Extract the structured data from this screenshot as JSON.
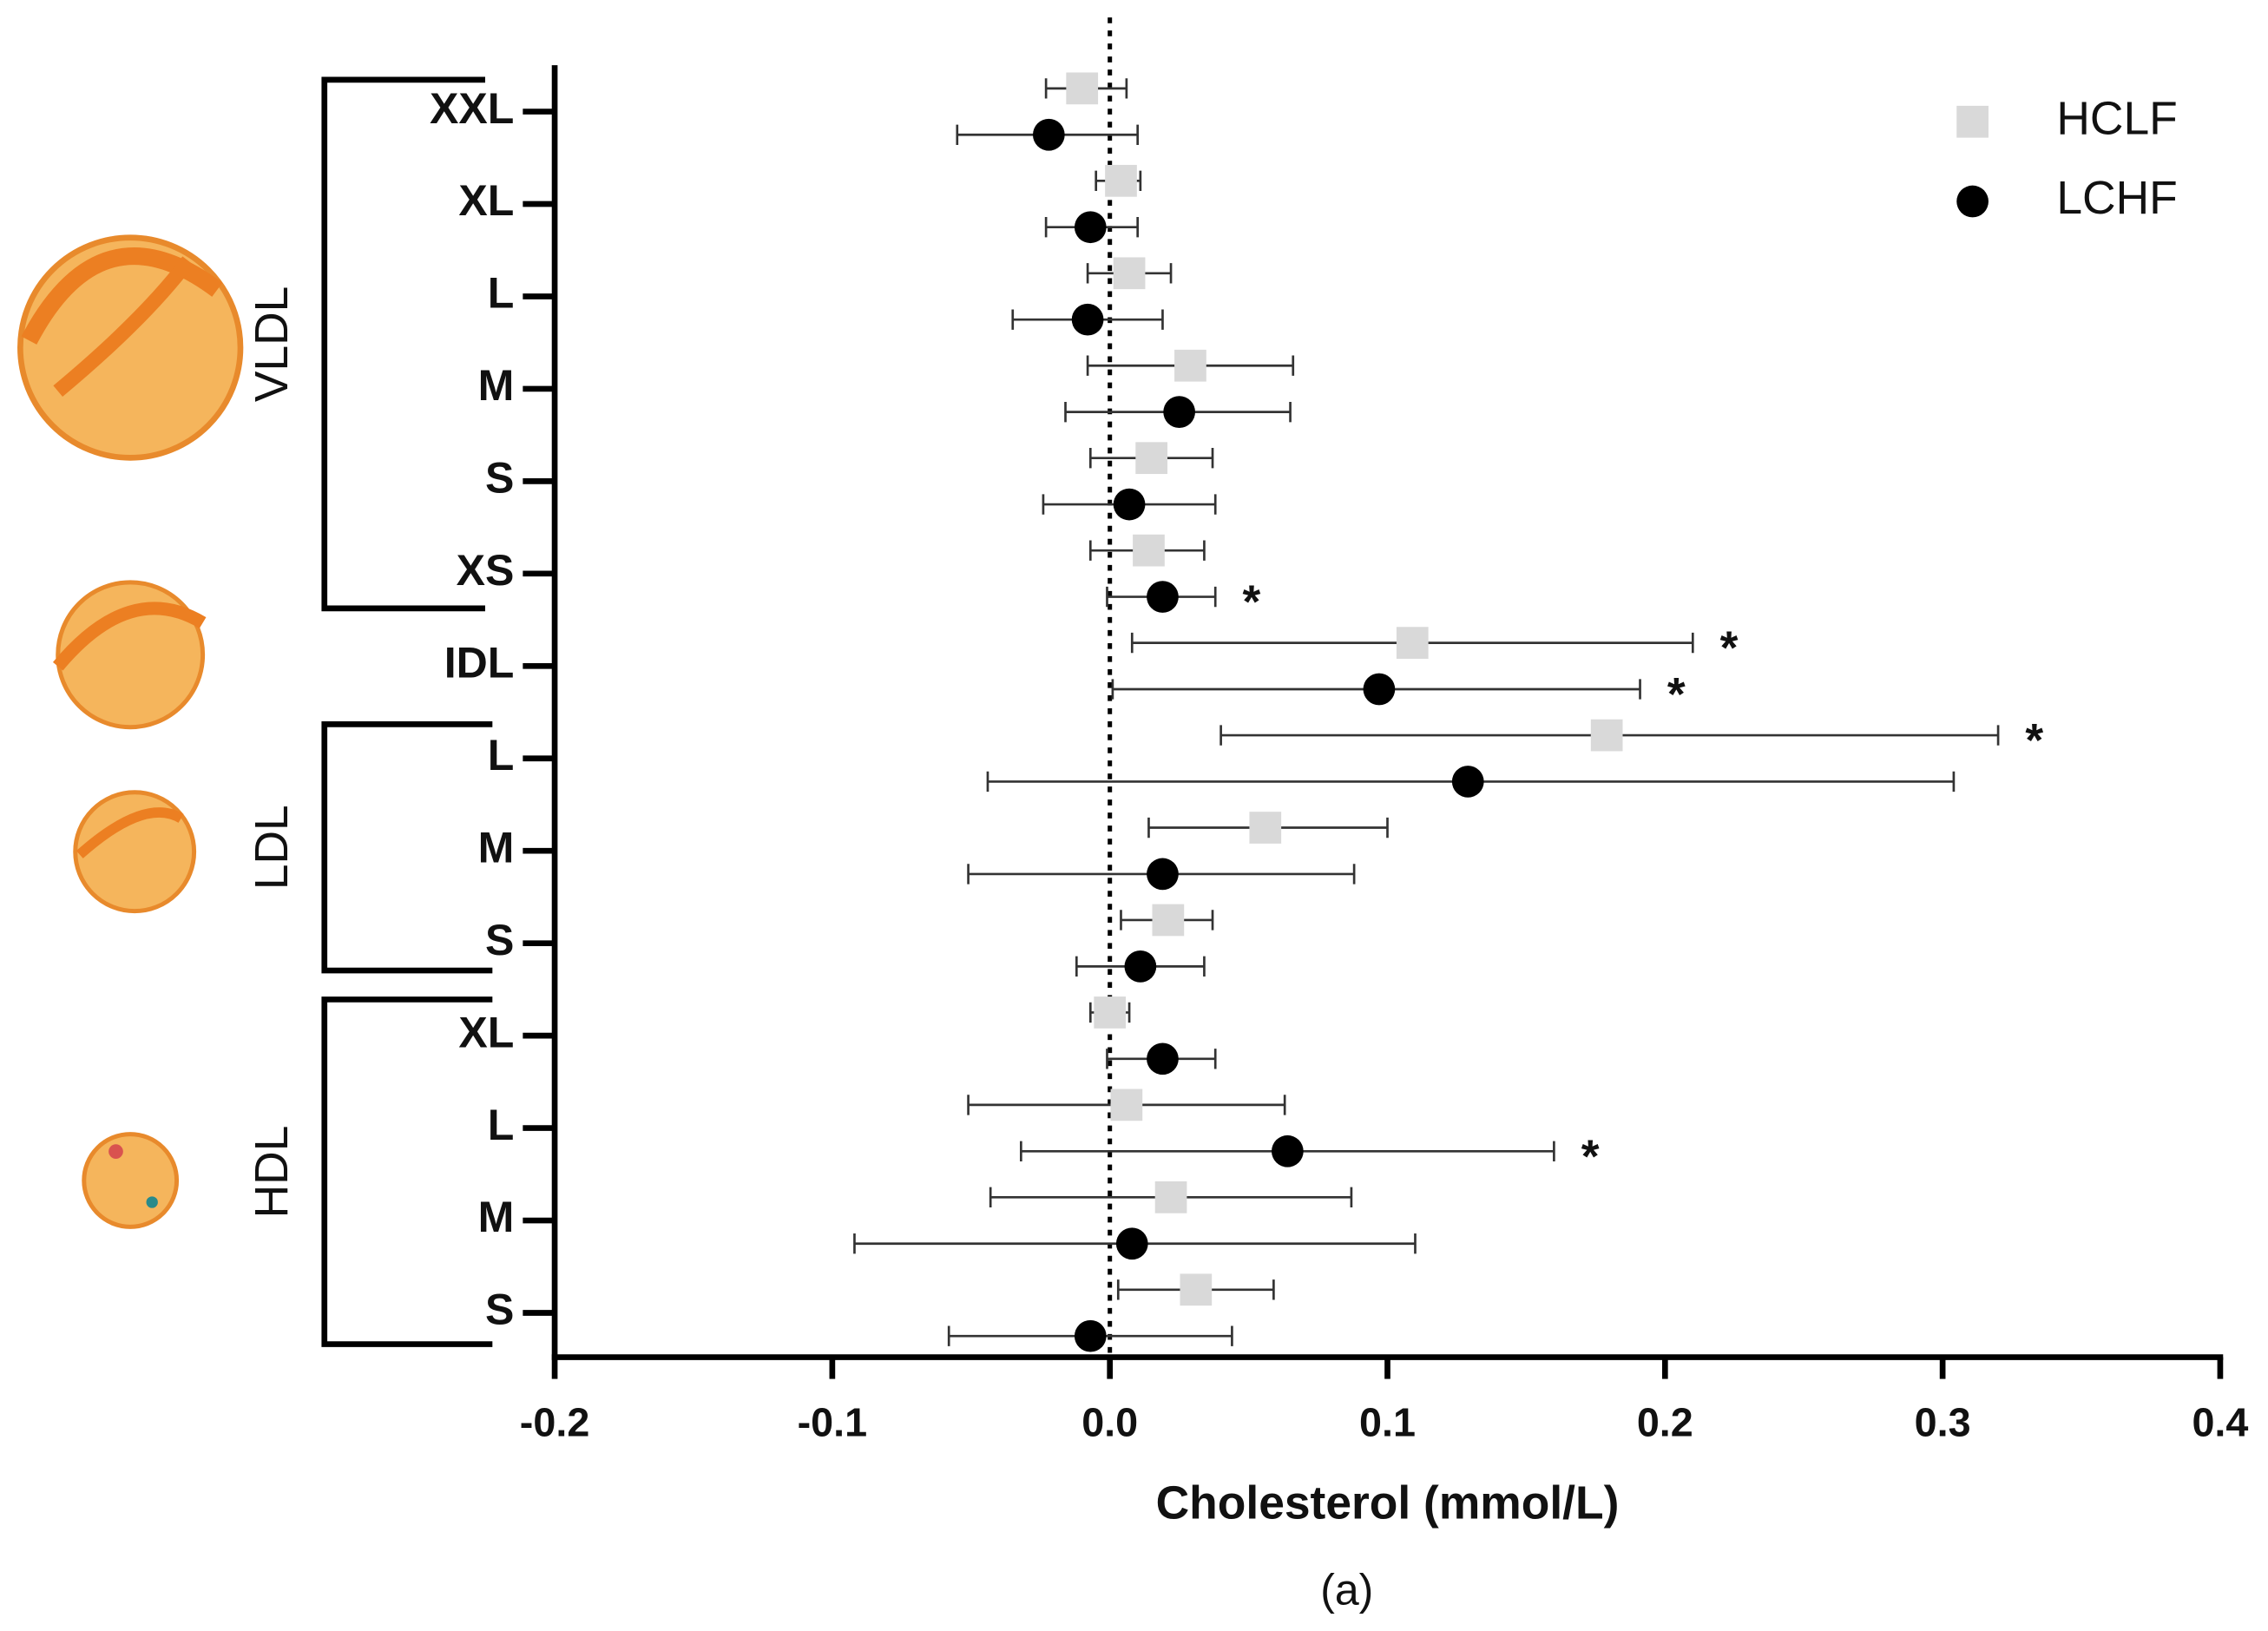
{
  "chart_data": {
    "type": "forest",
    "xlabel": "Cholesterol (mmol/L)",
    "caption": "(a)",
    "categories": [
      "XXL",
      "XL",
      "L",
      "M",
      "S",
      "XS",
      "IDL",
      "L",
      "M",
      "S",
      "XL",
      "L",
      "M",
      "S"
    ],
    "groups": [
      "VLDL",
      "LDL",
      "HDL"
    ],
    "xlim": [
      -0.2,
      0.4
    ],
    "xticks": [
      -0.2,
      -0.1,
      {
        "value": 0,
        "label": "0.0"
      },
      0.1,
      0.2,
      0.3,
      0.4
    ],
    "reference_line": 0,
    "legend": "upper right",
    "series": [
      {
        "name": "HCLF",
        "color": "#d9d9d9",
        "marker": "square",
        "values": [
          -0.01,
          0.004,
          0.007,
          0.029,
          0.015,
          0.014,
          0.109,
          0.179,
          0.056,
          0.021,
          0.0,
          0.006,
          0.022,
          0.031
        ],
        "lower": [
          -0.023,
          -0.005,
          -0.008,
          -0.008,
          -0.007,
          -0.007,
          0.008,
          0.04,
          0.014,
          0.004,
          -0.007,
          -0.051,
          -0.043,
          0.003
        ],
        "upper": [
          0.006,
          0.011,
          0.022,
          0.066,
          0.037,
          0.034,
          0.21,
          0.32,
          0.1,
          0.037,
          0.007,
          0.063,
          0.087,
          0.059
        ],
        "markers": [
          null,
          null,
          null,
          null,
          null,
          null,
          "*",
          "*",
          null,
          null,
          null,
          null,
          null,
          null
        ]
      },
      {
        "name": "LCHF",
        "color": "#000000",
        "marker": "circle",
        "values": [
          -0.022,
          -0.007,
          -0.008,
          0.025,
          0.007,
          0.019,
          0.097,
          0.129,
          0.019,
          0.011,
          0.019,
          0.064,
          0.008,
          -0.007
        ],
        "lower": [
          -0.055,
          -0.023,
          -0.035,
          -0.016,
          -0.024,
          -0.001,
          0.001,
          -0.044,
          -0.051,
          -0.012,
          -0.001,
          -0.032,
          -0.092,
          -0.058
        ],
        "upper": [
          0.01,
          0.01,
          0.019,
          0.065,
          0.038,
          0.038,
          0.191,
          0.304,
          0.088,
          0.034,
          0.038,
          0.16,
          0.11,
          0.044
        ],
        "markers": [
          null,
          null,
          null,
          null,
          null,
          "*",
          "*",
          null,
          null,
          null,
          null,
          "*",
          null,
          null
        ]
      }
    ]
  }
}
